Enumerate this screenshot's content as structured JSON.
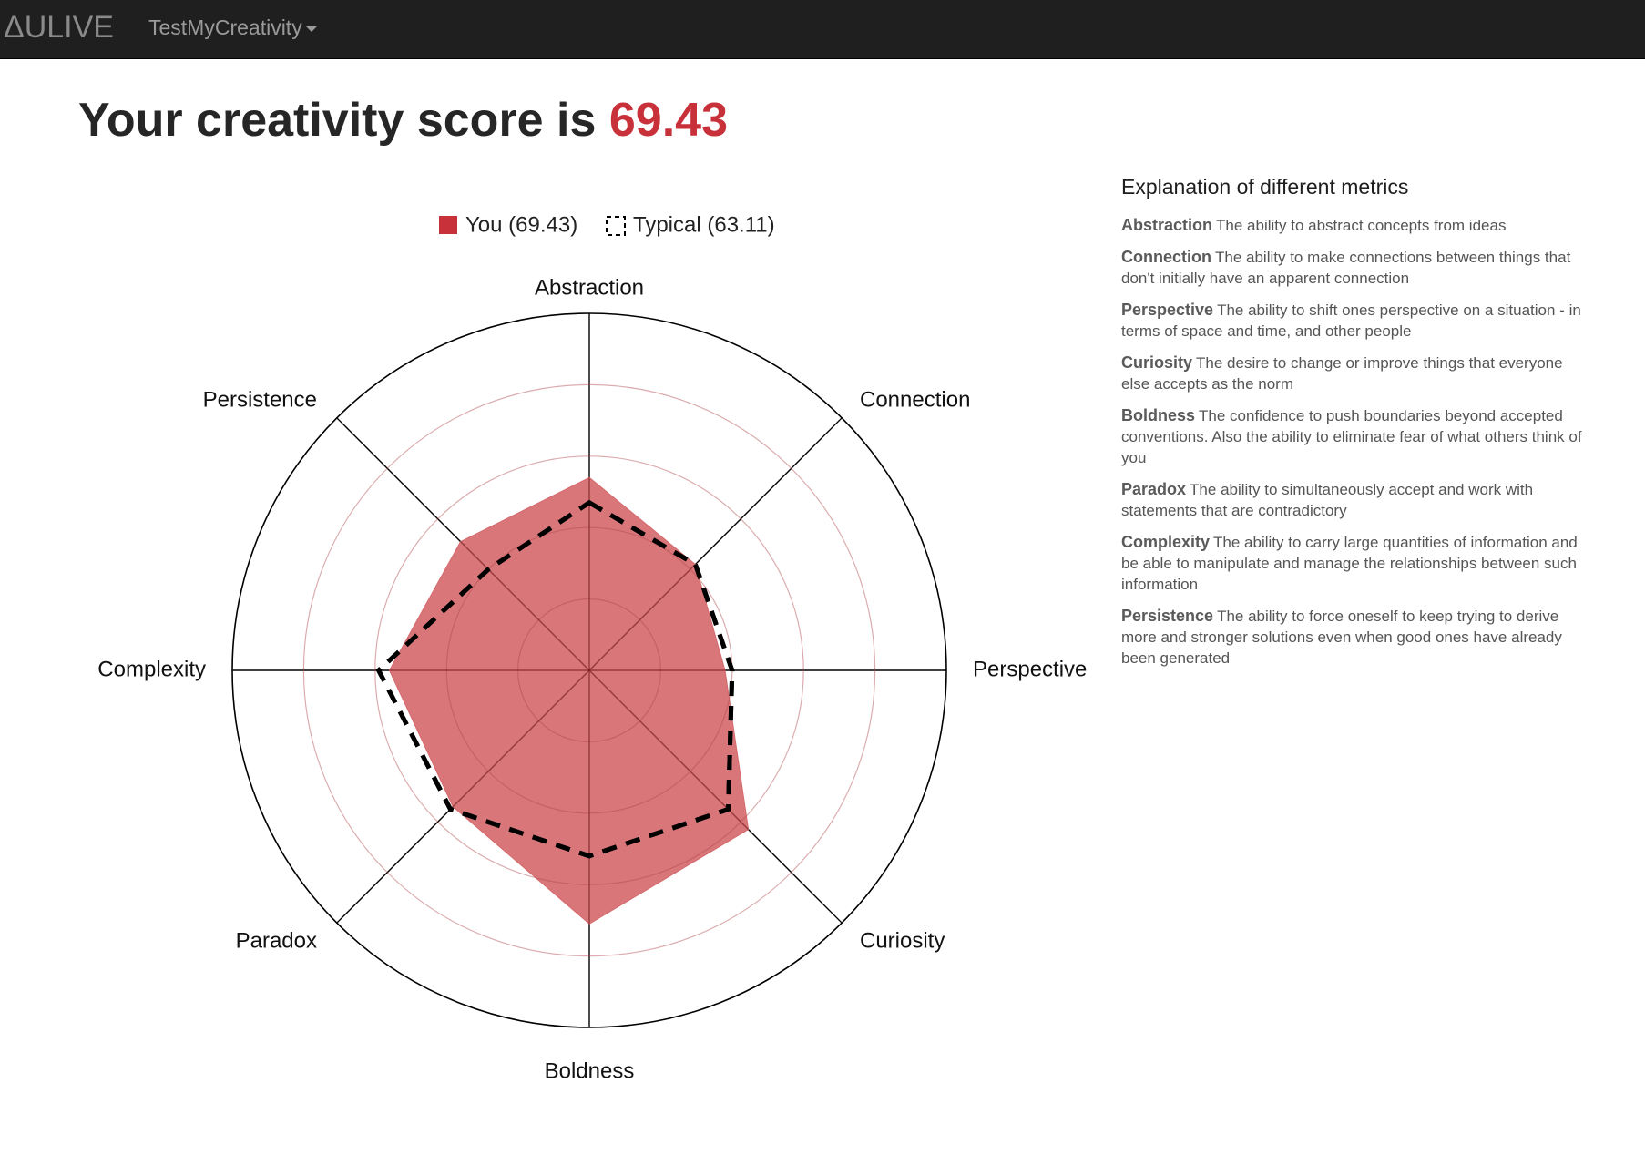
{
  "navbar": {
    "brand": "ΔULIVE",
    "menu_label": "TestMyCreativity"
  },
  "headline": {
    "prefix": "Your creativity score is ",
    "score": "69.43"
  },
  "colors": {
    "accent": "#c8313a",
    "you_fill": "#d56a6e",
    "navbar_bg": "#1f1f1f"
  },
  "chart_data": {
    "type": "radar",
    "axes": [
      "Abstraction",
      "Connection",
      "Perspective",
      "Curiosity",
      "Boldness",
      "Paradox",
      "Complexity",
      "Persistence"
    ],
    "rlim": [
      0,
      100
    ],
    "grid_rings": 5,
    "legend_position": "top",
    "series": [
      {
        "name": "You (69.43)",
        "style": "filled",
        "color": "#d56a6e",
        "values": [
          54,
          42,
          38,
          63,
          71,
          54,
          56,
          51
        ]
      },
      {
        "name": "Typical (63.11)",
        "style": "dashed",
        "color": "#000000",
        "values": [
          47,
          42,
          40,
          55,
          52,
          55,
          59,
          40
        ]
      }
    ]
  },
  "explanation": {
    "title": "Explanation of different metrics",
    "items": [
      {
        "name": "Abstraction",
        "desc": "The ability to abstract concepts from ideas"
      },
      {
        "name": "Connection",
        "desc": "The ability to make connections between things that don't initially have an apparent connection"
      },
      {
        "name": "Perspective",
        "desc": "The ability to shift ones perspective on a situation - in terms of space and time, and other people"
      },
      {
        "name": "Curiosity",
        "desc": "The desire to change or improve things that everyone else accepts as the norm"
      },
      {
        "name": "Boldness",
        "desc": "The confidence to push boundaries beyond accepted conventions. Also the ability to eliminate fear of what others think of you"
      },
      {
        "name": "Paradox",
        "desc": "The ability to simultaneously accept and work with statements that are contradictory"
      },
      {
        "name": "Complexity",
        "desc": "The ability to carry large quantities of information and be able to manipulate and manage the relationships between such information"
      },
      {
        "name": "Persistence",
        "desc": "The ability to force oneself to keep trying to derive more and stronger solutions even when good ones have already been generated"
      }
    ]
  }
}
